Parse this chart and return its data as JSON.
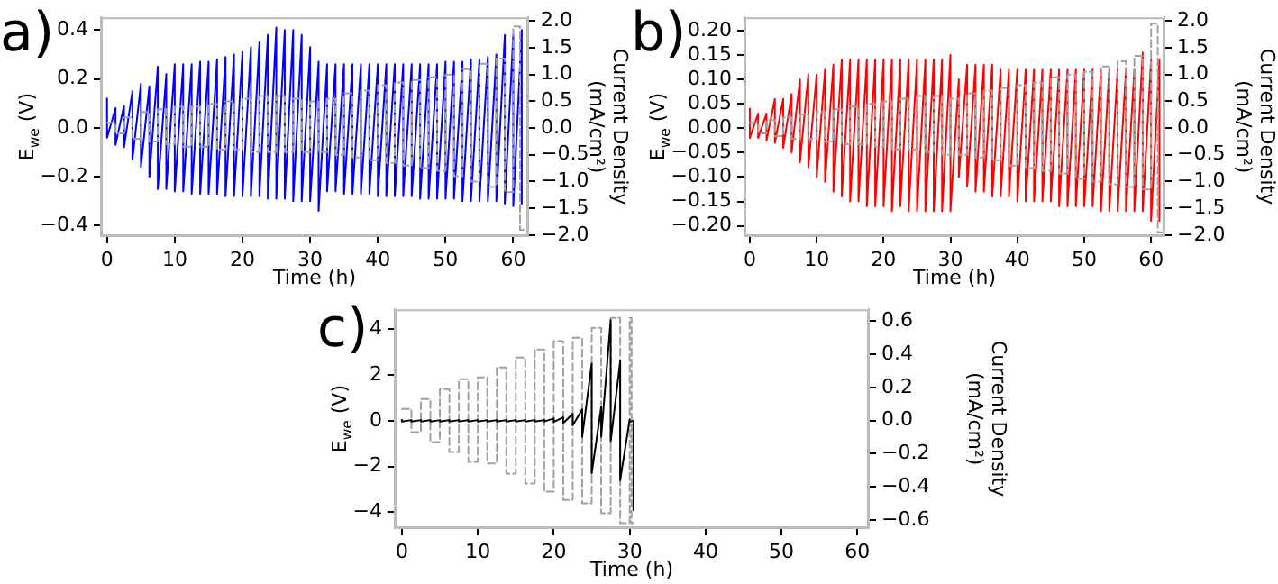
{
  "chart_data": [
    {
      "type": "line",
      "annotations": [
        "a)"
      ],
      "xlabel": "Time (h)",
      "ylabel": "E$_{we}$ (V)",
      "y2label": "Current Density (mA/cm²)",
      "xlim": [
        -0.9,
        62.2
      ],
      "xticks": [
        0,
        10,
        20,
        30,
        40,
        50,
        60
      ],
      "ylim": [
        -0.443,
        0.452
      ],
      "yticks": [
        {
          "value": -0.4,
          "label": "−0.4"
        },
        {
          "value": -0.2,
          "label": "−0.2"
        },
        {
          "value": 0,
          "label": "0.0"
        },
        {
          "value": 0.2,
          "label": "0.2"
        },
        {
          "value": 0.4,
          "label": "0.4"
        }
      ],
      "y2lim": [
        -2.02,
        2.07
      ],
      "y2ticks": [
        {
          "value": -2,
          "label": "−2.0"
        },
        {
          "value": -1.5,
          "label": "−1.5"
        },
        {
          "value": -1,
          "label": "−1.0"
        },
        {
          "value": -0.5,
          "label": "−0.5"
        },
        {
          "value": 0,
          "label": "0.0"
        },
        {
          "value": 0.5,
          "label": "0.5"
        },
        {
          "value": 1,
          "label": "1.0"
        },
        {
          "value": 1.5,
          "label": "1.5"
        },
        {
          "value": 2,
          "label": "2.0"
        }
      ],
      "series": [
        {
          "color": "#0000ff",
          "x": [
            0,
            0,
            1.25,
            1.25,
            2.5,
            2.5,
            3.75,
            3.75,
            5,
            5,
            6.25,
            6.25,
            7.5,
            7.5,
            8.75,
            8.75,
            10,
            10,
            11.25,
            11.25,
            12.5,
            12.5,
            13.75,
            13.75,
            15,
            15,
            16.25,
            16.25,
            17.5,
            17.5,
            18.75,
            18.75,
            20,
            20,
            21.25,
            21.25,
            22.5,
            22.5,
            23.75,
            23.75,
            25,
            25,
            26.25,
            26.25,
            27.5,
            27.5,
            28.75,
            28.75,
            30,
            30,
            31.25,
            31.25,
            32.5,
            32.5,
            33.75,
            33.75,
            35,
            35,
            36.25,
            36.25,
            37.5,
            37.5,
            38.75,
            38.75,
            40,
            40,
            41.25,
            41.25,
            42.5,
            42.5,
            43.75,
            43.75,
            45,
            45,
            46.25,
            46.25,
            47.5,
            47.5,
            48.75,
            48.75,
            50,
            50,
            51.25,
            51.25,
            52.5,
            52.5,
            53.75,
            53.75,
            55,
            55,
            56.25,
            56.25,
            57.5,
            57.5,
            58.75,
            58.75,
            60,
            60,
            61.25,
            61.25
          ],
          "values": [
            0.12,
            -0.04,
            0.08,
            -0.07,
            0.09,
            -0.08,
            0.15,
            -0.13,
            0.18,
            -0.16,
            0.17,
            -0.2,
            0.25,
            -0.25,
            0.22,
            -0.25,
            0.26,
            -0.26,
            0.26,
            -0.26,
            0.26,
            -0.27,
            0.27,
            -0.27,
            0.27,
            -0.27,
            0.28,
            -0.27,
            0.29,
            -0.28,
            0.3,
            -0.28,
            0.31,
            -0.28,
            0.33,
            -0.28,
            0.35,
            -0.28,
            0.38,
            -0.29,
            0.41,
            -0.29,
            0.4,
            -0.29,
            0.4,
            -0.3,
            0.38,
            -0.3,
            0.33,
            -0.3,
            0.27,
            -0.34,
            0.26,
            -0.26,
            0.26,
            -0.26,
            0.26,
            -0.27,
            0.26,
            -0.27,
            0.26,
            -0.27,
            0.26,
            -0.27,
            0.26,
            -0.28,
            0.26,
            -0.28,
            0.26,
            -0.28,
            0.26,
            -0.28,
            0.26,
            -0.28,
            0.26,
            -0.29,
            0.26,
            -0.29,
            0.26,
            -0.29,
            0.27,
            -0.29,
            0.27,
            -0.29,
            0.27,
            -0.3,
            0.28,
            -0.3,
            0.28,
            -0.3,
            0.29,
            -0.3,
            0.3,
            -0.3,
            0.38,
            -0.31,
            0.38,
            -0.32,
            0.4,
            -0.31
          ]
        },
        {
          "color": "#a0a0a0",
          "axis": "y2",
          "line_style": "dashed",
          "x": [
            0,
            1.25,
            1.25,
            2.5,
            2.5,
            3.75,
            3.75,
            5,
            5,
            6.25,
            6.25,
            7.5,
            7.5,
            8.75,
            8.75,
            10,
            10,
            11.25,
            11.25,
            12.5,
            12.5,
            13.75,
            13.75,
            15,
            15,
            16.25,
            16.25,
            17.5,
            17.5,
            18.75,
            18.75,
            20,
            20,
            21.25,
            21.25,
            22.5,
            22.5,
            23.75,
            23.75,
            25,
            25,
            26.25,
            26.25,
            27.5,
            27.5,
            28.75,
            28.75,
            30,
            30,
            31.25,
            31.25,
            32.5,
            32.5,
            33.75,
            33.75,
            35,
            35,
            36.25,
            36.25,
            37.5,
            37.5,
            38.75,
            38.75,
            40,
            40,
            41.25,
            41.25,
            42.5,
            42.5,
            43.75,
            43.75,
            45,
            45,
            46.25,
            46.25,
            47.5,
            47.5,
            48.75,
            48.75,
            50,
            50,
            51.25,
            51.25,
            52.5,
            52.5,
            53.75,
            53.75,
            55,
            55,
            56.25,
            56.25,
            57.5,
            57.5,
            58.75,
            58.75,
            60,
            60,
            61,
            61,
            61.8
          ],
          "values": [
            0.1,
            0.1,
            -0.1,
            -0.1,
            0.2,
            0.2,
            -0.2,
            -0.2,
            0.3,
            0.3,
            -0.25,
            -0.25,
            0.35,
            0.35,
            -0.3,
            -0.3,
            0.4,
            0.4,
            -0.35,
            -0.35,
            0.4,
            0.4,
            -0.35,
            -0.35,
            0.45,
            0.45,
            -0.4,
            -0.4,
            0.5,
            0.5,
            -0.4,
            -0.4,
            0.55,
            0.55,
            -0.45,
            -0.45,
            0.6,
            0.6,
            -0.45,
            -0.45,
            0.6,
            0.6,
            -0.45,
            -0.45,
            0.55,
            0.55,
            -0.45,
            -0.45,
            0.5,
            0.5,
            -0.45,
            -0.45,
            0.55,
            0.55,
            -0.5,
            -0.5,
            0.65,
            0.65,
            -0.55,
            -0.55,
            0.7,
            0.7,
            -0.6,
            -0.6,
            0.8,
            0.8,
            -0.65,
            -0.65,
            0.85,
            0.85,
            -0.7,
            -0.7,
            0.9,
            0.9,
            -0.75,
            -0.75,
            0.95,
            0.95,
            -0.8,
            -0.8,
            1.0,
            1.0,
            -0.9,
            -0.9,
            1.1,
            1.1,
            -1.0,
            -1.0,
            1.2,
            1.2,
            -1.1,
            -1.1,
            1.3,
            1.3,
            -1.2,
            -1.2,
            1.9,
            1.9,
            -1.9,
            -1.9
          ]
        }
      ]
    },
    {
      "type": "line",
      "annotations": [
        "b)"
      ],
      "xlabel": "Time (h)",
      "ylabel": "E$_{we}$ (V)",
      "y2label": "Current Density (mA/cm²)",
      "xlim": [
        -0.8,
        62
      ],
      "xticks": [
        0,
        10,
        20,
        30,
        40,
        50,
        60
      ],
      "ylim": [
        -0.221,
        0.227
      ],
      "yticks": [
        {
          "value": -0.2,
          "label": "−0.20"
        },
        {
          "value": -0.15,
          "label": "−0.15"
        },
        {
          "value": -0.1,
          "label": "−0.10"
        },
        {
          "value": -0.05,
          "label": "−0.05"
        },
        {
          "value": 0,
          "label": "0.00"
        },
        {
          "value": 0.05,
          "label": "0.05"
        },
        {
          "value": 0.1,
          "label": "0.10"
        },
        {
          "value": 0.15,
          "label": "0.15"
        },
        {
          "value": 0.2,
          "label": "0.20"
        }
      ],
      "y2lim": [
        -2.02,
        2.07
      ],
      "y2ticks": [
        {
          "value": -2,
          "label": "−2.0"
        },
        {
          "value": -1.5,
          "label": "−1.5"
        },
        {
          "value": -1,
          "label": "−1.0"
        },
        {
          "value": -0.5,
          "label": "−0.5"
        },
        {
          "value": 0,
          "label": "0.0"
        },
        {
          "value": 0.5,
          "label": "0.5"
        },
        {
          "value": 1,
          "label": "1.0"
        },
        {
          "value": 1.5,
          "label": "1.5"
        },
        {
          "value": 2,
          "label": "2.0"
        }
      ],
      "series": [
        {
          "color": "#ff0000",
          "x": [
            0,
            0,
            1.25,
            1.25,
            2.5,
            2.5,
            3.75,
            3.75,
            5,
            5,
            6.25,
            6.25,
            7.5,
            7.5,
            8.75,
            8.75,
            10,
            10,
            11.25,
            11.25,
            12.5,
            12.5,
            13.75,
            13.75,
            15,
            15,
            16.25,
            16.25,
            17.5,
            17.5,
            18.75,
            18.75,
            20,
            20,
            21.25,
            21.25,
            22.5,
            22.5,
            23.75,
            23.75,
            25,
            25,
            26.25,
            26.25,
            27.5,
            27.5,
            28.75,
            28.75,
            30,
            30,
            31.25,
            31.25,
            32.5,
            32.5,
            33.75,
            33.75,
            35,
            35,
            36.25,
            36.25,
            37.5,
            37.5,
            38.75,
            38.75,
            40,
            40,
            41.25,
            41.25,
            42.5,
            42.5,
            43.75,
            43.75,
            45,
            45,
            46.25,
            46.25,
            47.5,
            47.5,
            48.75,
            48.75,
            50,
            50,
            51.25,
            51.25,
            52.5,
            52.5,
            53.75,
            53.75,
            55,
            55,
            56.25,
            56.25,
            57.5,
            57.5,
            58.75,
            58.75,
            60,
            60,
            61.25,
            61.25
          ],
          "values": [
            0.04,
            -0.02,
            0.03,
            -0.02,
            0.03,
            -0.025,
            0.06,
            -0.03,
            0.06,
            -0.04,
            0.07,
            -0.05,
            0.1,
            -0.07,
            0.11,
            -0.08,
            0.11,
            -0.1,
            0.12,
            -0.11,
            0.13,
            -0.13,
            0.14,
            -0.14,
            0.14,
            -0.15,
            0.14,
            -0.15,
            0.14,
            -0.16,
            0.14,
            -0.16,
            0.14,
            -0.16,
            0.14,
            -0.17,
            0.14,
            -0.16,
            0.14,
            -0.17,
            0.14,
            -0.17,
            0.14,
            -0.17,
            0.14,
            -0.17,
            0.14,
            -0.17,
            0.15,
            -0.17,
            0.1,
            -0.1,
            0.13,
            -0.12,
            0.13,
            -0.13,
            0.13,
            -0.13,
            0.13,
            -0.14,
            0.12,
            -0.14,
            0.12,
            -0.14,
            0.12,
            -0.15,
            0.12,
            -0.15,
            0.12,
            -0.15,
            0.12,
            -0.15,
            0.12,
            -0.15,
            0.12,
            -0.16,
            0.12,
            -0.16,
            0.12,
            -0.16,
            0.12,
            -0.16,
            0.12,
            -0.16,
            0.12,
            -0.17,
            0.12,
            -0.17,
            0.12,
            -0.17,
            0.12,
            -0.17,
            0.12,
            -0.17,
            0.155,
            -0.17,
            0.14,
            -0.19,
            0.14,
            -0.19
          ]
        },
        {
          "color": "#a0a0a0",
          "axis": "y2",
          "line_style": "dashed",
          "x": [
            0,
            1.25,
            1.25,
            2.5,
            2.5,
            3.75,
            3.75,
            5,
            5,
            6.25,
            6.25,
            7.5,
            7.5,
            8.75,
            8.75,
            10,
            10,
            11.25,
            11.25,
            12.5,
            12.5,
            13.75,
            13.75,
            15,
            15,
            16.25,
            16.25,
            17.5,
            17.5,
            18.75,
            18.75,
            20,
            20,
            21.25,
            21.25,
            22.5,
            22.5,
            23.75,
            23.75,
            25,
            25,
            26.25,
            26.25,
            27.5,
            27.5,
            28.75,
            28.75,
            30,
            30,
            31.25,
            31.25,
            32.5,
            32.5,
            33.75,
            33.75,
            35,
            35,
            36.25,
            36.25,
            37.5,
            37.5,
            38.75,
            38.75,
            40,
            40,
            41.25,
            41.25,
            42.5,
            42.5,
            43.75,
            43.75,
            45,
            45,
            46.25,
            46.25,
            47.5,
            47.5,
            48.75,
            48.75,
            50,
            50,
            51.25,
            51.25,
            52.5,
            52.5,
            53.75,
            53.75,
            55,
            55,
            56.25,
            56.25,
            57.5,
            57.5,
            58.75,
            58.75,
            60,
            60,
            61,
            61,
            61.8
          ],
          "values": [
            0.1,
            0.1,
            -0.1,
            -0.1,
            0.15,
            0.15,
            -0.15,
            -0.15,
            0.2,
            0.2,
            -0.2,
            -0.2,
            0.25,
            0.25,
            -0.2,
            -0.2,
            0.3,
            0.3,
            -0.25,
            -0.25,
            0.35,
            0.35,
            -0.3,
            -0.3,
            0.4,
            0.4,
            -0.3,
            -0.3,
            0.45,
            0.45,
            -0.35,
            -0.35,
            0.5,
            0.5,
            -0.4,
            -0.4,
            0.55,
            0.55,
            -0.4,
            -0.4,
            0.6,
            0.6,
            -0.45,
            -0.45,
            0.6,
            0.6,
            -0.5,
            -0.5,
            0.55,
            0.55,
            -0.5,
            -0.5,
            0.65,
            0.65,
            -0.55,
            -0.55,
            0.7,
            0.7,
            -0.6,
            -0.6,
            0.75,
            0.75,
            -0.7,
            -0.7,
            0.8,
            0.8,
            -0.75,
            -0.75,
            0.85,
            0.85,
            -0.8,
            -0.8,
            0.95,
            0.95,
            -0.85,
            -0.85,
            1.0,
            1.0,
            -0.95,
            -0.95,
            1.05,
            1.05,
            -1.0,
            -1.0,
            1.15,
            1.15,
            -1.05,
            -1.05,
            1.25,
            1.25,
            -1.1,
            -1.1,
            1.35,
            1.35,
            -1.15,
            -1.15,
            1.95,
            1.95,
            -1.95,
            -1.95
          ]
        }
      ]
    },
    {
      "type": "line",
      "annotations": [
        "c)"
      ],
      "xlabel": "Time (h)",
      "ylabel": "E$_{we}$ (V)",
      "y2label": "Current Density (mA/cm²)",
      "xlim": [
        -0.94,
        61.5
      ],
      "xticks": [
        0,
        10,
        20,
        30,
        40,
        50,
        60
      ],
      "ylim": [
        -4.69,
        4.87
      ],
      "yticks": [
        {
          "value": -4,
          "label": "−4"
        },
        {
          "value": -2,
          "label": "−2"
        },
        0,
        2,
        4
      ],
      "y2lim": [
        -0.65,
        0.672
      ],
      "y2ticks": [
        {
          "value": -0.6,
          "label": "−0.6"
        },
        {
          "value": -0.4,
          "label": "−0.4"
        },
        {
          "value": -0.2,
          "label": "−0.2"
        },
        {
          "value": 0,
          "label": "0.0"
        },
        {
          "value": 0.2,
          "label": "0.2"
        },
        {
          "value": 0.4,
          "label": "0.4"
        },
        {
          "value": 0.6,
          "label": "0.6"
        }
      ],
      "series": [
        {
          "color": "#a0a0a0",
          "axis": "y2",
          "line_style": "dashed",
          "x": [
            0,
            1.25,
            1.25,
            2.5,
            2.5,
            3.75,
            3.75,
            5,
            5,
            6.25,
            6.25,
            7.5,
            7.5,
            8.75,
            8.75,
            10,
            10,
            11.25,
            11.25,
            12.5,
            12.5,
            13.75,
            13.75,
            15,
            15,
            16.25,
            16.25,
            17.5,
            17.5,
            18.75,
            18.75,
            20,
            20,
            21.25,
            21.25,
            22.5,
            22.5,
            23.75,
            23.75,
            25,
            25,
            26.25,
            26.25,
            27.5,
            27.5,
            28.75,
            28.75,
            30,
            30,
            30.25,
            30.25,
            30.5
          ],
          "values": [
            0.07,
            0.07,
            -0.07,
            -0.07,
            0.13,
            0.13,
            -0.13,
            -0.13,
            0.19,
            0.19,
            -0.19,
            -0.19,
            0.25,
            0.25,
            -0.25,
            -0.25,
            0.26,
            0.26,
            -0.26,
            -0.26,
            0.32,
            0.32,
            -0.32,
            -0.32,
            0.38,
            0.38,
            -0.38,
            -0.38,
            0.43,
            0.43,
            -0.43,
            -0.43,
            0.48,
            0.48,
            -0.48,
            -0.48,
            0.5,
            0.5,
            -0.5,
            -0.5,
            0.56,
            0.56,
            -0.56,
            -0.56,
            0.62,
            0.62,
            -0.62,
            -0.62,
            0.62,
            0.62,
            -0.62,
            -0.62
          ]
        },
        {
          "color": "#000000",
          "x": [
            0,
            0,
            1.25,
            1.25,
            2.5,
            2.5,
            3.75,
            3.75,
            5,
            5,
            6.25,
            6.25,
            7.5,
            7.5,
            8.75,
            8.75,
            10,
            10,
            11.25,
            11.25,
            12.5,
            12.5,
            13.75,
            13.75,
            15,
            15,
            16.25,
            16.25,
            17.5,
            17.5,
            18.75,
            18.75,
            20,
            20,
            21.25,
            21.25,
            22.5,
            22.5,
            23.75,
            23.75,
            25,
            25,
            26.25,
            26.25,
            27.5,
            27.5,
            28.75,
            28.75,
            30,
            30,
            30.5,
            30.5
          ],
          "values": [
            0.03,
            -0.03,
            0.03,
            -0.03,
            0.03,
            -0.03,
            0.03,
            -0.03,
            0.03,
            -0.03,
            0.03,
            -0.03,
            0.03,
            -0.03,
            0.03,
            -0.03,
            0.03,
            -0.03,
            0.03,
            -0.03,
            0.03,
            -0.03,
            0.03,
            -0.03,
            0.03,
            -0.03,
            0.03,
            -0.03,
            0.03,
            -0.03,
            0.03,
            -0.03,
            0.1,
            -0.05,
            0.15,
            -0.1,
            0.3,
            -0.2,
            0.5,
            -0.7,
            2.5,
            -2.3,
            0.6,
            -0.7,
            4.4,
            -0.9,
            2.6,
            -2.6,
            0.05,
            -0.05,
            0,
            -3.9
          ]
        }
      ]
    }
  ]
}
